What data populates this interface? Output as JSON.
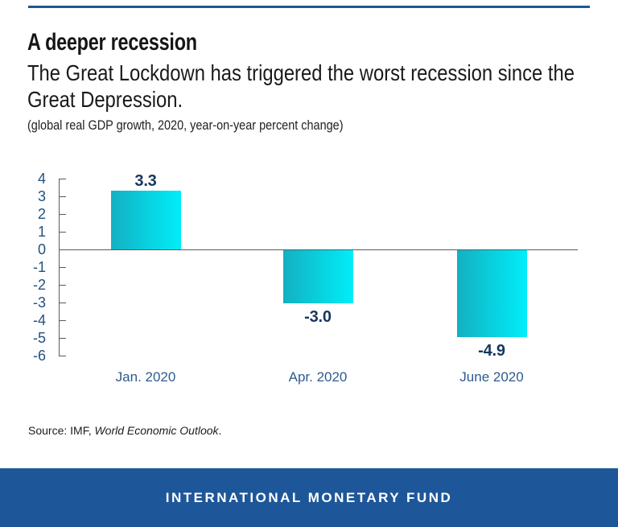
{
  "page": {
    "title": "A deeper recession",
    "subtitle": "The Great Lockdown has triggered the worst recession since the Great Depression.",
    "note": "(global real GDP growth, 2020, year-on-year percent change)",
    "source_prefix": "Source: IMF, ",
    "source_italic": "World Economic Outlook",
    "source_suffix": ".",
    "footer_text": "INTERNATIONAL MONETARY FUND"
  },
  "colors": {
    "brand_blue": "#1e5799",
    "bar_gradient_left": "#13b0c2",
    "bar_gradient_right": "#00eef9",
    "axis_gray": "#595a5c",
    "ytick_label_blue": "#23527e",
    "value_label_navy": "#17375e",
    "category_label_blue": "#2e5b8e"
  },
  "chart_data": {
    "type": "bar",
    "categories": [
      "Jan. 2020",
      "Apr. 2020",
      "June 2020"
    ],
    "values": [
      3.3,
      -3.0,
      -4.9
    ],
    "value_labels": [
      "3.3",
      "-3.0",
      "-4.9"
    ],
    "title": "A deeper recession",
    "subtitle": "(global real GDP growth, 2020, year-on-year percent change)",
    "xlabel": "",
    "ylabel": "",
    "ylim": [
      -6,
      4
    ],
    "yticks": [
      4,
      3,
      2,
      1,
      0,
      -1,
      -2,
      -3,
      -4,
      -5,
      -6
    ],
    "grid": false,
    "legend": null,
    "bar_style": "horizontal gradient teal-to-cyan",
    "baseline_at_zero": true
  }
}
